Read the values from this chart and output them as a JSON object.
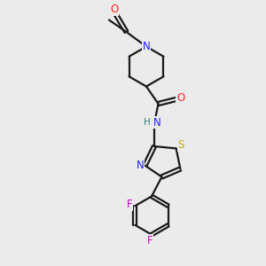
{
  "bg_color": "#ebebeb",
  "bond_color": "#1a1a1a",
  "N_color": "#2020ff",
  "O_color": "#ff2020",
  "S_color": "#ccaa00",
  "F_color": "#cc00cc",
  "H_color": "#408080",
  "figsize": [
    3.0,
    3.0
  ],
  "dpi": 100,
  "lw": 1.6,
  "fs": 8.5,
  "xlim": [
    0,
    10
  ],
  "ylim": [
    0,
    10
  ]
}
